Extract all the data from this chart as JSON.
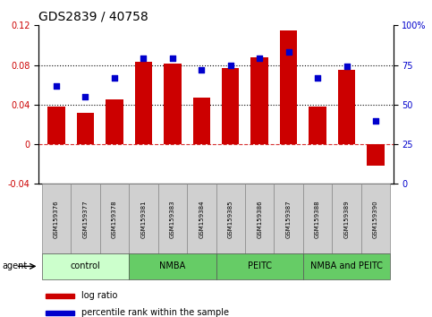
{
  "title": "GDS2839 / 40758",
  "samples": [
    "GSM159376",
    "GSM159377",
    "GSM159378",
    "GSM159381",
    "GSM159383",
    "GSM159384",
    "GSM159385",
    "GSM159386",
    "GSM159387",
    "GSM159388",
    "GSM159389",
    "GSM159390"
  ],
  "log_ratio": [
    0.038,
    0.032,
    0.045,
    0.083,
    0.081,
    0.047,
    0.077,
    0.088,
    0.115,
    0.038,
    0.075,
    -0.022
  ],
  "percentile_rank": [
    62,
    55,
    67,
    79,
    79,
    72,
    75,
    79,
    83,
    67,
    74,
    40
  ],
  "bar_color": "#CC0000",
  "dot_color": "#0000CC",
  "ylim_left": [
    -0.04,
    0.12
  ],
  "ylim_right": [
    0,
    100
  ],
  "yticks_left": [
    -0.04,
    0,
    0.04,
    0.08,
    0.12
  ],
  "yticks_right": [
    0,
    25,
    50,
    75,
    100
  ],
  "hline_dotted": [
    0.04,
    0.08
  ],
  "hline_dashed": 0.0,
  "group_data": [
    {
      "label": "control",
      "indices": [
        0,
        1,
        2
      ],
      "color": "#ccffcc"
    },
    {
      "label": "NMBA",
      "indices": [
        3,
        4,
        5
      ],
      "color": "#66cc66"
    },
    {
      "label": "PEITC",
      "indices": [
        6,
        7,
        8
      ],
      "color": "#66cc66"
    },
    {
      "label": "NMBA and PEITC",
      "indices": [
        9,
        10,
        11
      ],
      "color": "#66cc66"
    }
  ],
  "legend_bar_label": "log ratio",
  "legend_dot_label": "percentile rank within the sample",
  "agent_label": "agent",
  "title_fontsize": 10,
  "tick_fontsize": 7,
  "sample_fontsize": 5,
  "group_fontsize": 7,
  "legend_fontsize": 7
}
